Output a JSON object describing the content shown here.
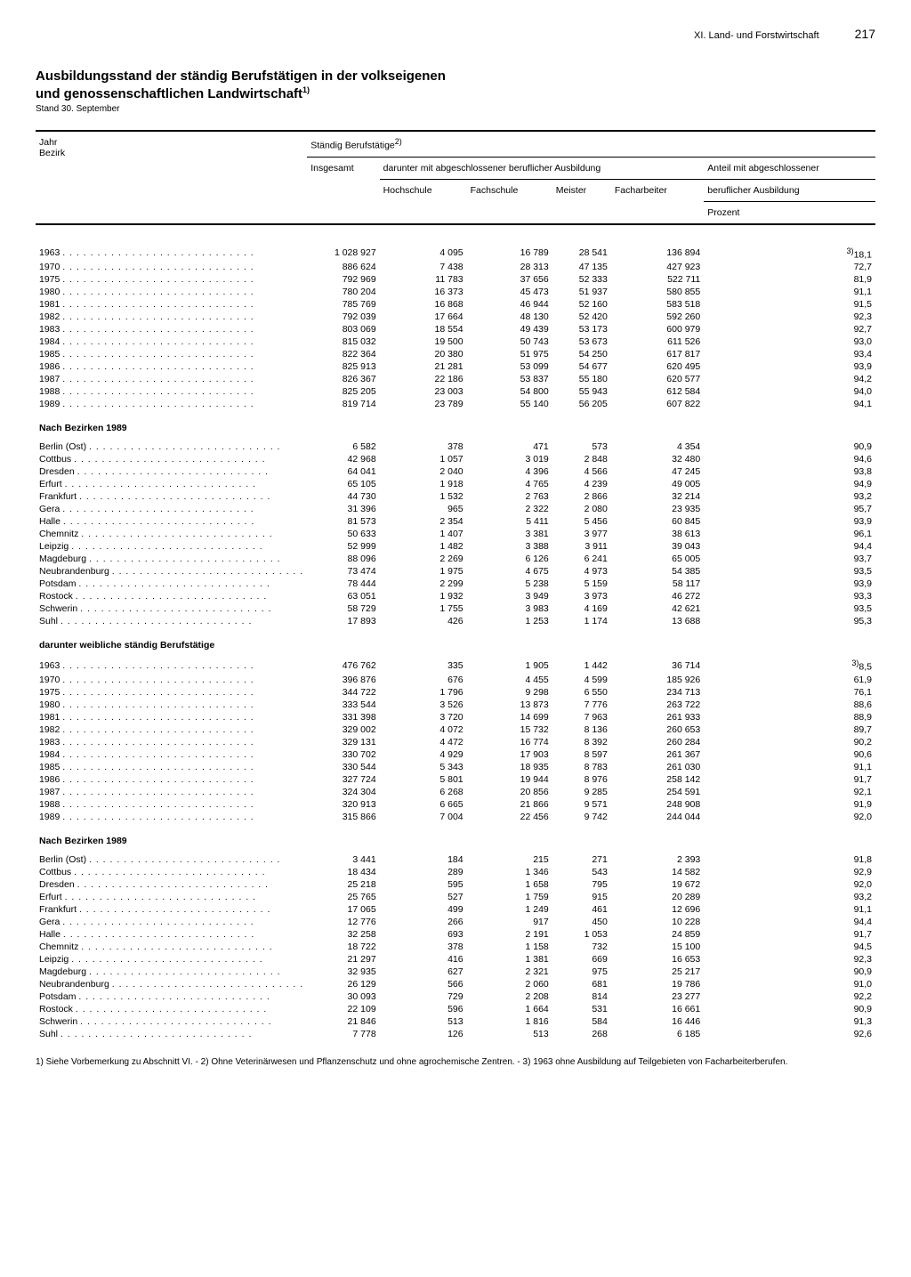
{
  "header": {
    "section": "XI. Land- und Forstwirtschaft",
    "page": "217"
  },
  "title_line1": "Ausbildungsstand der ständig Berufstätigen in der volkseigenen",
  "title_line2": "und genossenschaftlichen Landwirtschaft",
  "title_super": "1)",
  "subtitle": "Stand 30. September",
  "thead": {
    "row_label": "Jahr\nBezirk",
    "group": "Ständig Berufstätige",
    "group_super": "2)",
    "insgesamt": "Insgesamt",
    "darunter": "darunter mit abgeschlossener beruflicher Ausbildung",
    "hochschule": "Hochschule",
    "fachschule": "Fachschule",
    "meister": "Meister",
    "facharbeiter": "Facharbeiter",
    "anteil1": "Anteil mit abgeschlossener",
    "anteil2": "beruflicher Ausbildung",
    "prozent": "Prozent"
  },
  "sections": [
    {
      "rows": [
        [
          "1963",
          "1 028 927",
          "4 095",
          "16 789",
          "28 541",
          "136 894",
          "3)18,1"
        ],
        [
          "1970",
          "886 624",
          "7 438",
          "28 313",
          "47 135",
          "427 923",
          "72,7"
        ],
        [
          "1975",
          "792 969",
          "11 783",
          "37 656",
          "52 333",
          "522 711",
          "81,9"
        ],
        [
          "1980",
          "780 204",
          "16 373",
          "45 473",
          "51 937",
          "580 855",
          "91,1"
        ],
        [
          "1981",
          "785 769",
          "16 868",
          "46 944",
          "52 160",
          "583 518",
          "91,5"
        ],
        [
          "1982",
          "792 039",
          "17 664",
          "48 130",
          "52 420",
          "592 260",
          "92,3"
        ],
        [
          "1983",
          "803 069",
          "18 554",
          "49 439",
          "53 173",
          "600 979",
          "92,7"
        ],
        [
          "1984",
          "815 032",
          "19 500",
          "50 743",
          "53 673",
          "611 526",
          "93,0"
        ],
        [
          "1985",
          "822 364",
          "20 380",
          "51 975",
          "54 250",
          "617 817",
          "93,4"
        ],
        [
          "1986",
          "825 913",
          "21 281",
          "53 099",
          "54 677",
          "620 495",
          "93,9"
        ],
        [
          "1987",
          "826 367",
          "22 186",
          "53 837",
          "55 180",
          "620 577",
          "94,2"
        ],
        [
          "1988",
          "825 205",
          "23 003",
          "54 800",
          "55 943",
          "612 584",
          "94,0"
        ],
        [
          "1989",
          "819 714",
          "23 789",
          "55 140",
          "56 205",
          "607 822",
          "94,1"
        ]
      ]
    },
    {
      "title": "Nach Bezirken 1989",
      "rows": [
        [
          "Berlin (Ost)",
          "6 582",
          "378",
          "471",
          "573",
          "4 354",
          "90,9"
        ],
        [
          "Cottbus",
          "42 968",
          "1 057",
          "3 019",
          "2 848",
          "32 480",
          "94,6"
        ],
        [
          "Dresden",
          "64 041",
          "2 040",
          "4 396",
          "4 566",
          "47 245",
          "93,8"
        ],
        [
          "Erfurt",
          "65 105",
          "1 918",
          "4 765",
          "4 239",
          "49 005",
          "94,9"
        ],
        [
          "Frankfurt",
          "44 730",
          "1 532",
          "2 763",
          "2 866",
          "32 214",
          "93,2"
        ],
        [
          "Gera",
          "31 396",
          "965",
          "2 322",
          "2 080",
          "23 935",
          "95,7"
        ],
        [
          "Halle",
          "81 573",
          "2 354",
          "5 411",
          "5 456",
          "60 845",
          "93,9"
        ],
        [
          "Chemnitz",
          "50 633",
          "1 407",
          "3 381",
          "3 977",
          "38 613",
          "96,1"
        ],
        [
          "Leipzig",
          "52 999",
          "1 482",
          "3 388",
          "3 911",
          "39 043",
          "94,4"
        ],
        [
          "Magdeburg",
          "88 096",
          "2 269",
          "6 126",
          "6 241",
          "65 005",
          "93,7"
        ],
        [
          "Neubrandenburg",
          "73 474",
          "1 975",
          "4 675",
          "4 973",
          "54 385",
          "93,5"
        ],
        [
          "Potsdam",
          "78 444",
          "2 299",
          "5 238",
          "5 159",
          "58 117",
          "93,9"
        ],
        [
          "Rostock",
          "63 051",
          "1 932",
          "3 949",
          "3 973",
          "46 272",
          "93,3"
        ],
        [
          "Schwerin",
          "58 729",
          "1 755",
          "3 983",
          "4 169",
          "42 621",
          "93,5"
        ],
        [
          "Suhl",
          "17 893",
          "426",
          "1 253",
          "1 174",
          "13 688",
          "95,3"
        ]
      ]
    },
    {
      "title": "darunter weibliche ständig Berufstätige",
      "rows": [
        [
          "1963",
          "476 762",
          "335",
          "1 905",
          "1 442",
          "36 714",
          "3)8,5"
        ],
        [
          "1970",
          "396 876",
          "676",
          "4 455",
          "4 599",
          "185 926",
          "61,9"
        ],
        [
          "1975",
          "344 722",
          "1 796",
          "9 298",
          "6 550",
          "234 713",
          "76,1"
        ],
        [
          "1980",
          "333 544",
          "3 526",
          "13 873",
          "7 776",
          "263 722",
          "88,6"
        ],
        [
          "1981",
          "331 398",
          "3 720",
          "14 699",
          "7 963",
          "261 933",
          "88,9"
        ],
        [
          "1982",
          "329 002",
          "4 072",
          "15 732",
          "8 136",
          "260 653",
          "89,7"
        ],
        [
          "1983",
          "329 131",
          "4 472",
          "16 774",
          "8 392",
          "260 284",
          "90,2"
        ],
        [
          "1984",
          "330 702",
          "4 929",
          "17 903",
          "8 597",
          "261 367",
          "90,6"
        ],
        [
          "1985",
          "330 544",
          "5 343",
          "18 935",
          "8 783",
          "261 030",
          "91,1"
        ],
        [
          "1986",
          "327 724",
          "5 801",
          "19 944",
          "8 976",
          "258 142",
          "91,7"
        ],
        [
          "1987",
          "324 304",
          "6 268",
          "20 856",
          "9 285",
          "254 591",
          "92,1"
        ],
        [
          "1988",
          "320 913",
          "6 665",
          "21 866",
          "9 571",
          "248 908",
          "91,9"
        ],
        [
          "1989",
          "315 866",
          "7 004",
          "22 456",
          "9 742",
          "244 044",
          "92,0"
        ]
      ]
    },
    {
      "title": "Nach Bezirken 1989",
      "rows": [
        [
          "Berlin (Ost)",
          "3 441",
          "184",
          "215",
          "271",
          "2 393",
          "91,8"
        ],
        [
          "Cottbus",
          "18 434",
          "289",
          "1 346",
          "543",
          "14 582",
          "92,9"
        ],
        [
          "Dresden",
          "25 218",
          "595",
          "1 658",
          "795",
          "19 672",
          "92,0"
        ],
        [
          "Erfurt",
          "25 765",
          "527",
          "1 759",
          "915",
          "20 289",
          "93,2"
        ],
        [
          "Frankfurt",
          "17 065",
          "499",
          "1 249",
          "461",
          "12 696",
          "91,1"
        ],
        [
          "Gera",
          "12 776",
          "266",
          "917",
          "450",
          "10 228",
          "94,4"
        ],
        [
          "Halle",
          "32 258",
          "693",
          "2 191",
          "1 053",
          "24 859",
          "91,7"
        ],
        [
          "Chemnitz",
          "18 722",
          "378",
          "1 158",
          "732",
          "15 100",
          "94,5"
        ],
        [
          "Leipzig",
          "21 297",
          "416",
          "1 381",
          "669",
          "16 653",
          "92,3"
        ],
        [
          "Magdeburg",
          "32 935",
          "627",
          "2 321",
          "975",
          "25 217",
          "90,9"
        ],
        [
          "Neubrandenburg",
          "26 129",
          "566",
          "2 060",
          "681",
          "19 786",
          "91,0"
        ],
        [
          "Potsdam",
          "30 093",
          "729",
          "2 208",
          "814",
          "23 277",
          "92,2"
        ],
        [
          "Rostock",
          "22 109",
          "596",
          "1 664",
          "531",
          "16 661",
          "90,9"
        ],
        [
          "Schwerin",
          "21 846",
          "513",
          "1 816",
          "584",
          "16 446",
          "91,3"
        ],
        [
          "Suhl",
          "7 778",
          "126",
          "513",
          "268",
          "6 185",
          "92,6"
        ]
      ]
    }
  ],
  "footnote": "1) Siehe Vorbemerkung zu Abschnitt VI. - 2) Ohne Veterinärwesen und Pflanzenschutz und ohne agrochemische Zentren. - 3) 1963 ohne Ausbildung auf Teilgebieten von Facharbeiterberufen."
}
